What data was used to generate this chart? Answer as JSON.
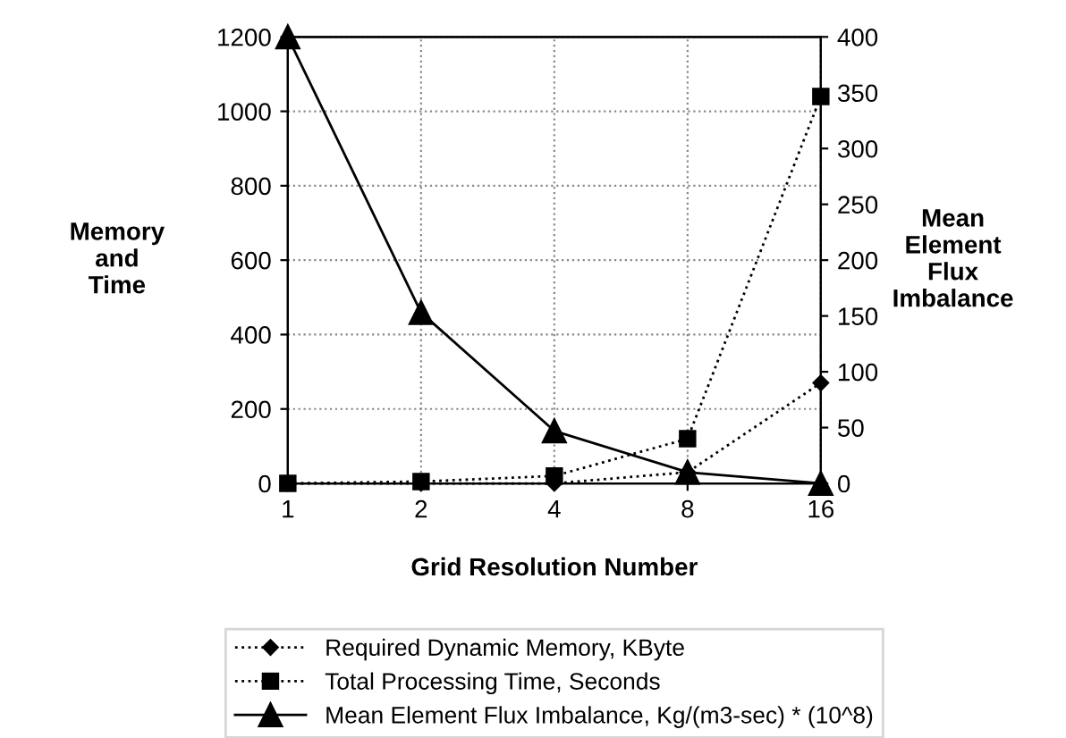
{
  "chart_data": {
    "type": "line",
    "xlabel": "Grid Resolution Number",
    "ylabel": "Memory\nand\nTime",
    "y2label": "Mean\nElement\nFlux\nImbalance",
    "categories": [
      "1",
      "2",
      "4",
      "8",
      "16"
    ],
    "series": [
      {
        "name": "Required Dynamic Memory, KByte",
        "color": "#000000",
        "marker": "diamond",
        "line_style": "dotted",
        "values": [
          0,
          0,
          0,
          30,
          270
        ]
      },
      {
        "name": "Total Processing Time, Seconds",
        "color": "#000000",
        "marker": "square",
        "line_style": "dotted",
        "values": [
          0,
          5,
          20,
          120,
          1040
        ]
      },
      {
        "name": "Mean Element Flux Imbalance, Kg/(m3-sec) * (10^8)",
        "color": "#000000",
        "marker": "triangle",
        "line_style": "solid",
        "axis": "y2",
        "values": [
          400,
          153,
          47,
          10,
          0
        ]
      }
    ],
    "ylim": [
      0,
      1200
    ],
    "yticks": [
      0,
      200,
      400,
      600,
      800,
      1000,
      1200
    ],
    "y2lim": [
      0,
      400
    ],
    "y2ticks": [
      0,
      50,
      100,
      150,
      200,
      250,
      300,
      350,
      400
    ],
    "grid": true,
    "legend": "bottom"
  }
}
